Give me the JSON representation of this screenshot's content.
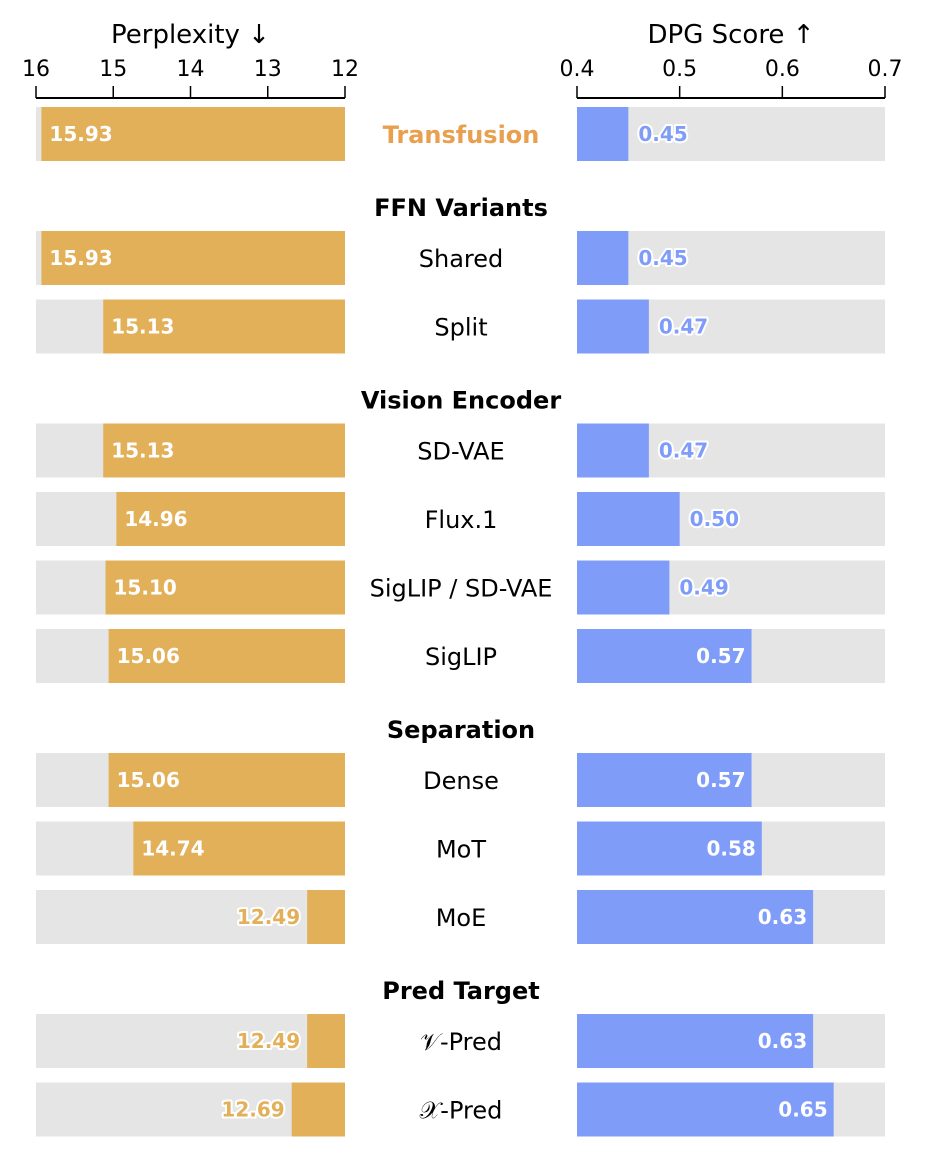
{
  "chart_data": {
    "type": "bar",
    "colors": {
      "perplexity": "#E3B05A",
      "dpg": "#7F9CF9",
      "background": "#E5E5E5",
      "highlight": "#E8A04E"
    },
    "left_axis": {
      "title": "Perplexity ↓",
      "range": [
        16,
        12
      ],
      "ticks": [
        "16",
        "15",
        "14",
        "13",
        "12"
      ]
    },
    "right_axis": {
      "title": "DPG Score ↑",
      "range": [
        0.4,
        0.7
      ],
      "ticks": [
        "0.4",
        "0.5",
        "0.6",
        "0.7"
      ]
    },
    "rows": [
      {
        "kind": "row",
        "label": "Transfusion",
        "highlight": true,
        "perplexity": 15.93,
        "dpg": 0.45
      },
      {
        "kind": "header",
        "label": "FFN Variants"
      },
      {
        "kind": "row",
        "label": "Shared",
        "perplexity": 15.93,
        "dpg": 0.45
      },
      {
        "kind": "row",
        "label": "Split",
        "perplexity": 15.13,
        "dpg": 0.47
      },
      {
        "kind": "header",
        "label": "Vision Encoder"
      },
      {
        "kind": "row",
        "label": "SD-VAE",
        "perplexity": 15.13,
        "dpg": 0.47
      },
      {
        "kind": "row",
        "label": "Flux.1",
        "perplexity": 14.96,
        "dpg": 0.5
      },
      {
        "kind": "row",
        "label": "SigLIP / SD-VAE",
        "perplexity": 15.1,
        "dpg": 0.49
      },
      {
        "kind": "row",
        "label": "SigLIP",
        "perplexity": 15.06,
        "dpg": 0.57
      },
      {
        "kind": "header",
        "label": "Separation"
      },
      {
        "kind": "row",
        "label": "Dense",
        "perplexity": 15.06,
        "dpg": 0.57
      },
      {
        "kind": "row",
        "label": "MoT",
        "perplexity": 14.74,
        "dpg": 0.58
      },
      {
        "kind": "row",
        "label": "MoE",
        "perplexity": 12.49,
        "dpg": 0.63
      },
      {
        "kind": "header",
        "label": "Pred Target"
      },
      {
        "kind": "row",
        "label": "𝒱-Pred",
        "perplexity": 12.49,
        "dpg": 0.63
      },
      {
        "kind": "row",
        "label": "𝒳-Pred",
        "perplexity": 12.69,
        "dpg": 0.65
      }
    ]
  }
}
